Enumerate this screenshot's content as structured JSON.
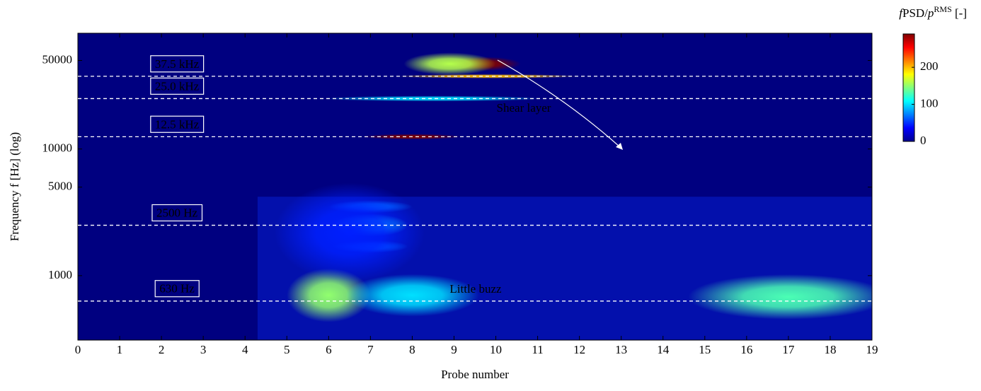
{
  "chart_data": {
    "type": "heatmap",
    "x_label": "Probe number",
    "y_label": "Frequency f [Hz] (log)",
    "xlim": [
      0,
      19
    ],
    "xticks": [
      0,
      1,
      2,
      3,
      4,
      5,
      6,
      7,
      8,
      9,
      10,
      11,
      12,
      13,
      14,
      15,
      16,
      17,
      18,
      19
    ],
    "ylim": [
      310,
      82000
    ],
    "yticks": [
      1000,
      5000,
      10000,
      50000
    ],
    "log_y": true,
    "colorbar": {
      "label_parts": [
        "f",
        "PSD/",
        "p",
        "RMS",
        " [-]"
      ],
      "zlim": [
        0,
        290
      ],
      "ticks": [
        0,
        100,
        200
      ],
      "colormap": "jet"
    },
    "background_value": 0,
    "hotspots": {
      "x": [
        6,
        8,
        17,
        7,
        7,
        7,
        6.5,
        8.5,
        8,
        9.8,
        9.7,
        8.9
      ],
      "y": [
        700,
        700,
        680,
        2500,
        3500,
        1700,
        2200,
        25000,
        12500,
        37500,
        47000,
        47000
      ],
      "values": [
        150,
        100,
        130,
        110,
        70,
        70,
        45,
        100,
        290,
        200,
        290,
        160
      ]
    },
    "reference_lines": {
      "values": [
        37500,
        25000,
        12500,
        2500,
        630
      ],
      "labels": [
        "37.5 kHz",
        "25.0 kHz",
        "12.5 kHz",
        "2500 Hz",
        "630 Hz"
      ]
    },
    "annotations": [
      "Shear layer",
      "Little buzz"
    ]
  }
}
